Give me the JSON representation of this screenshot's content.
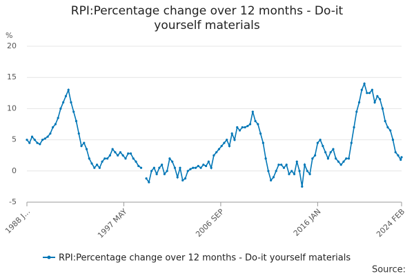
{
  "chart_data": {
    "type": "line",
    "title": "RPI:Percentage change over 12 months - Do-it yourself materials",
    "y_unit": "%",
    "source": "Source:",
    "x": [
      "1988 JAN",
      "1988 APR",
      "1988 JUL",
      "1988 OCT",
      "1989 JAN",
      "1989 APR",
      "1989 JUL",
      "1989 OCT",
      "1990 JAN",
      "1990 APR",
      "1990 JUL",
      "1990 OCT",
      "1991 JAN",
      "1991 APR",
      "1991 JUL",
      "1991 OCT",
      "1992 JAN",
      "1992 APR",
      "1992 JUL",
      "1992 OCT",
      "1993 JAN",
      "1993 APR",
      "1993 JUL",
      "1993 OCT",
      "1994 JAN",
      "1994 APR",
      "1994 JUL",
      "1994 OCT",
      "1995 JAN",
      "1995 APR",
      "1995 JUL",
      "1995 OCT",
      "1996 JAN",
      "1996 APR",
      "1996 JUL",
      "1996 OCT",
      "1997 JAN",
      "1997 APR",
      "1997 JUL",
      "1997 OCT",
      "1998 JAN",
      "1998 APR",
      "1998 JUL",
      "1998 OCT",
      "1999 JAN",
      "1999 APR",
      "1999 JUL",
      "1999 OCT",
      "2000 JAN",
      "2000 APR",
      "2000 JUL",
      "2000 OCT",
      "2001 JAN",
      "2001 APR",
      "2001 JUL",
      "2001 OCT",
      "2002 JAN",
      "2002 APR",
      "2002 JUL",
      "2002 OCT",
      "2003 JAN",
      "2003 APR",
      "2003 JUL",
      "2003 OCT",
      "2004 JAN",
      "2004 APR",
      "2004 JUL",
      "2004 OCT",
      "2005 JAN",
      "2005 APR",
      "2005 JUL",
      "2005 OCT",
      "2006 JAN",
      "2006 APR",
      "2006 JUL",
      "2006 OCT",
      "2007 JAN",
      "2007 APR",
      "2007 JUL",
      "2007 OCT",
      "2008 JAN",
      "2008 APR",
      "2008 JUL",
      "2008 OCT",
      "2009 JAN",
      "2009 APR",
      "2009 JUL",
      "2009 OCT",
      "2010 JAN",
      "2010 APR",
      "2010 JUL",
      "2010 OCT",
      "2011 JAN",
      "2011 APR",
      "2011 JUL",
      "2011 OCT",
      "2012 JAN",
      "2012 APR",
      "2012 JUL",
      "2012 OCT",
      "2013 JAN",
      "2013 APR",
      "2013 JUL",
      "2013 OCT",
      "2014 JAN",
      "2014 APR",
      "2014 JUL",
      "2014 OCT",
      "2015 JAN",
      "2015 APR",
      "2015 JUL",
      "2015 OCT",
      "2016 JAN",
      "2016 APR",
      "2016 JUL",
      "2016 OCT",
      "2017 JAN",
      "2017 APR",
      "2017 JUL",
      "2017 OCT",
      "2018 JAN",
      "2018 APR",
      "2018 JUL",
      "2018 OCT",
      "2019 JAN",
      "2019 APR",
      "2019 JUL",
      "2019 OCT",
      "2020 JAN",
      "2020 APR",
      "2020 JUL",
      "2020 OCT",
      "2021 JAN",
      "2021 APR",
      "2021 JUL",
      "2021 OCT",
      "2022 JAN",
      "2022 APR",
      "2022 JUL",
      "2022 OCT",
      "2023 JAN",
      "2023 APR",
      "2023 JUL",
      "2023 OCT",
      "2024 JAN",
      "2024 FEB"
    ],
    "series": [
      {
        "name": "RPI:Percentage change over 12 months - Do-it yourself materials",
        "color": "#0076b6",
        "values": [
          5,
          4.5,
          5.5,
          5,
          4.5,
          4.3,
          5,
          5.2,
          5.5,
          6,
          7,
          7.5,
          8.5,
          10,
          11,
          12,
          13,
          11,
          9.5,
          8,
          6,
          4,
          4.5,
          3.5,
          2,
          1.2,
          0.5,
          1,
          0.5,
          1.5,
          2,
          2,
          2.5,
          3.5,
          3,
          2.5,
          3,
          2.5,
          2,
          2.8,
          2.8,
          2,
          1.5,
          0.8,
          0.5,
          null,
          -1.2,
          -1.8,
          0,
          0.5,
          -0.5,
          0.5,
          1,
          -0.5,
          0,
          2,
          1.5,
          0.5,
          -1,
          0.5,
          -1.5,
          -1.2,
          0,
          0.3,
          0.5,
          0.5,
          0.8,
          0.5,
          1,
          0.8,
          1.5,
          0.5,
          2.5,
          3,
          3.5,
          4,
          4.5,
          5,
          4,
          6,
          5,
          7,
          6.5,
          7,
          7,
          7.2,
          7.5,
          9.5,
          8,
          7.5,
          6,
          4.5,
          2,
          0,
          -1.5,
          -1,
          0,
          1,
          1,
          0.5,
          1,
          -0.5,
          0,
          -0.5,
          1.5,
          0,
          -2.5,
          1,
          0,
          -0.5,
          2,
          2.5,
          4.5,
          5,
          4,
          3,
          2,
          3,
          3.5,
          2,
          1.5,
          1,
          1.5,
          2,
          2,
          4.5,
          7,
          9.5,
          11,
          13,
          14,
          12.5,
          12.5,
          13,
          11,
          12,
          11.5,
          10,
          8,
          7,
          6.5,
          5,
          3,
          2.5,
          1.8,
          2.2
        ]
      }
    ],
    "ylim": [
      -5,
      20
    ],
    "yticks": [
      -5,
      0,
      5,
      10,
      15,
      20
    ],
    "xlim": [
      "1988 JAN",
      "2024 FEB"
    ],
    "xticks": [
      {
        "value": "1988 JAN",
        "label": "1988 J..."
      },
      "1997 MAY",
      "2006 SEP",
      "2016 JAN",
      "2024 FEB"
    ],
    "grid": true
  }
}
